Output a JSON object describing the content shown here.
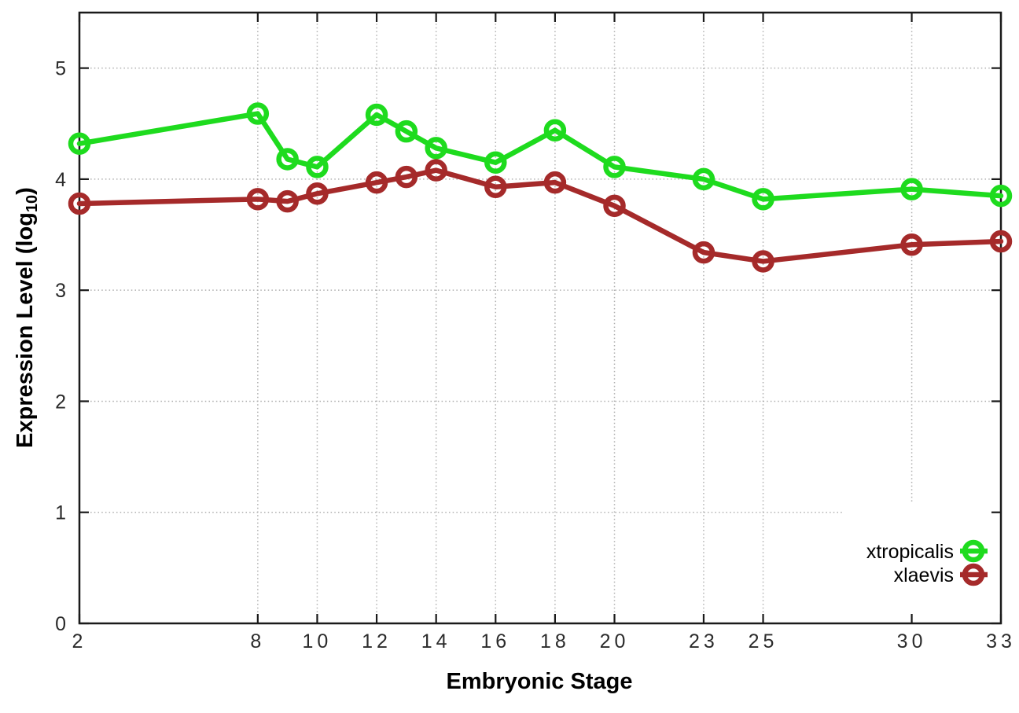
{
  "chart_data": {
    "type": "line",
    "title": "",
    "xlabel": "Embryonic Stage",
    "ylabel": "Expression Level (log10)",
    "ylabel_parts": {
      "pre": "Expression Level (log",
      "sub": "10",
      "post": ")"
    },
    "xlim": [
      2,
      33
    ],
    "ylim": [
      0,
      5.5
    ],
    "x_ticks": [
      2,
      8,
      10,
      12,
      14,
      16,
      18,
      20,
      23,
      25,
      30,
      33
    ],
    "y_ticks": [
      0,
      1,
      2,
      3,
      4,
      5
    ],
    "grid": "dotted",
    "marker": "open-circle",
    "legend_position": "bottom-right",
    "legend_opaque": true,
    "series": [
      {
        "name": "xtropicalis",
        "color": "#1edb1e",
        "x": [
          2,
          8,
          9,
          10,
          12,
          13,
          14,
          16,
          18,
          20,
          23,
          25,
          30,
          33
        ],
        "y": [
          4.32,
          4.59,
          4.18,
          4.11,
          4.58,
          4.43,
          4.28,
          4.15,
          4.44,
          4.11,
          4.0,
          3.82,
          3.91,
          3.85
        ]
      },
      {
        "name": "xlaevis",
        "color": "#a52a2a",
        "x": [
          2,
          8,
          9,
          10,
          12,
          13,
          14,
          16,
          18,
          20,
          23,
          25,
          30,
          33
        ],
        "y": [
          3.78,
          3.82,
          3.8,
          3.87,
          3.97,
          4.02,
          4.08,
          3.93,
          3.97,
          3.76,
          3.34,
          3.26,
          3.41,
          3.44
        ]
      }
    ],
    "style": {
      "background": "#ffffff",
      "border_color": "#1a1a1a",
      "grid_color": "#b0b0b0",
      "tick_label_color": "#2b2b2b",
      "title_color": "#000000"
    }
  }
}
